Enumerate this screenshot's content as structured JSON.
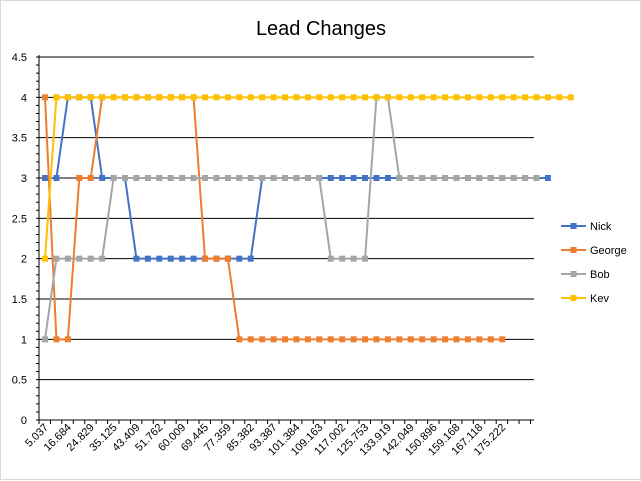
{
  "chart_data": {
    "type": "line",
    "title": "Lead Changes",
    "xlabel": "",
    "ylabel": "",
    "ylim": [
      0,
      4.5
    ],
    "ystep": 0.5,
    "y_tick_labels": [
      "0",
      "0.5",
      "1",
      "1.5",
      "2",
      "2.5",
      "3",
      "3.5",
      "4",
      "4.5"
    ],
    "x_tick_labels": [
      "5.037",
      "16.684",
      "24.829",
      "35.125",
      "43.409",
      "51.762",
      "60.009",
      "69.445",
      "77.359",
      "85.382",
      "93.387",
      "101.384",
      "109.163",
      "117.002",
      "125.753",
      "133.919",
      "142.049",
      "150.896",
      "159.168",
      "167.118",
      "175.222"
    ],
    "grid": true,
    "legend_position": "right",
    "colors": {
      "Nick": "#4472c4",
      "George": "#ed7d31",
      "Bob": "#a5a5a5",
      "Kev": "#ffc000",
      "grid": "#000000",
      "axis": "#000000"
    },
    "series": [
      {
        "name": "Nick",
        "values": [
          3,
          3,
          4,
          4,
          4,
          3,
          3,
          3,
          2,
          2,
          2,
          2,
          2,
          2,
          2,
          2,
          2,
          2,
          2,
          3,
          3,
          3,
          3,
          3,
          3,
          3,
          3,
          3,
          3,
          3,
          3,
          3,
          3,
          3,
          3,
          3,
          3,
          3,
          3,
          3,
          3,
          3,
          3,
          3,
          3
        ]
      },
      {
        "name": "George",
        "values": [
          4,
          1,
          1,
          3,
          3,
          4,
          4,
          4,
          4,
          4,
          4,
          4,
          4,
          4,
          2,
          2,
          2,
          1,
          1,
          1,
          1,
          1,
          1,
          1,
          1,
          1,
          1,
          1,
          1,
          1,
          1,
          1,
          1,
          1,
          1,
          1,
          1,
          1,
          1,
          1,
          1
        ]
      },
      {
        "name": "Bob",
        "values": [
          1,
          2,
          2,
          2,
          2,
          2,
          3,
          3,
          3,
          3,
          3,
          3,
          3,
          3,
          3,
          3,
          3,
          3,
          3,
          3,
          3,
          3,
          3,
          3,
          3,
          2,
          2,
          2,
          2,
          4,
          4,
          3,
          3,
          3,
          3,
          3,
          3,
          3,
          3,
          3,
          3,
          3,
          3,
          3
        ]
      },
      {
        "name": "Kev",
        "values": [
          2,
          4,
          4,
          4,
          4,
          4,
          4,
          4,
          4,
          4,
          4,
          4,
          4,
          4,
          4,
          4,
          4,
          4,
          4,
          4,
          4,
          4,
          4,
          4,
          4,
          4,
          4,
          4,
          4,
          4,
          4,
          4,
          4,
          4,
          4,
          4,
          4,
          4,
          4,
          4,
          4,
          4,
          4,
          4,
          4,
          4,
          4
        ]
      }
    ]
  }
}
